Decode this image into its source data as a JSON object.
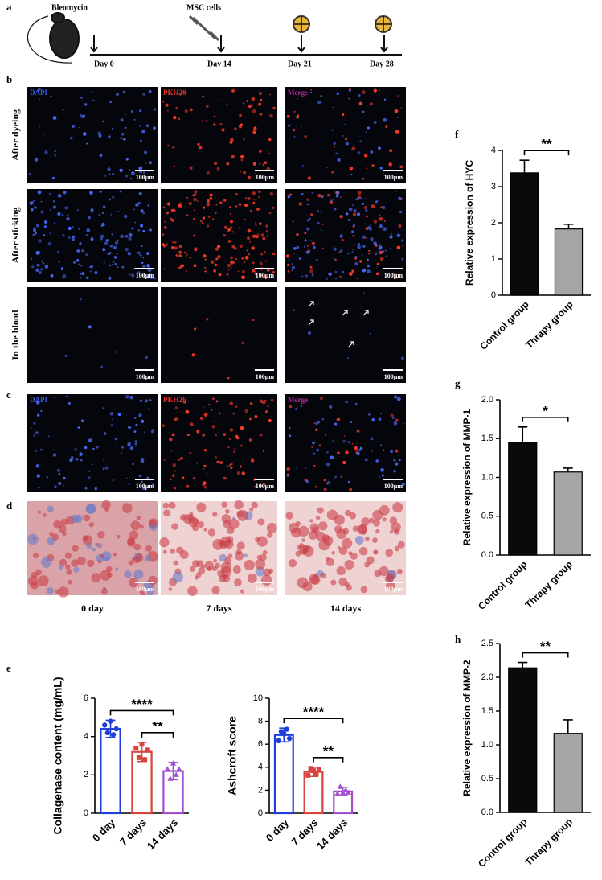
{
  "panel_labels": [
    "a",
    "b",
    "c",
    "d",
    "e",
    "f",
    "g",
    "h"
  ],
  "timeline": {
    "agent": "Bleomycin",
    "treatment": "MSC cells",
    "days": [
      "Day 0",
      "Day 14",
      "Day 21",
      "Day 28"
    ]
  },
  "fluorescence": {
    "channels": [
      "DAPI",
      "PKH26",
      "Merge"
    ],
    "conditions": [
      "After dyeing",
      "After sticking",
      "In the blood"
    ],
    "scale_bar": "100μm"
  },
  "histology": {
    "timepoints": [
      "0 day",
      "7 days",
      "14 days"
    ],
    "scale_bar": "100μm"
  },
  "chart_data": [
    {
      "type": "bar",
      "style": "outline",
      "y_label": "Collagenase content (mg/mL)",
      "categories": [
        "0 day",
        "7 days",
        "14 days"
      ],
      "values": [
        4.4,
        3.2,
        2.2
      ],
      "errors": [
        0.45,
        0.5,
        0.45
      ],
      "points": [
        [
          4.6,
          4.2,
          4.8,
          4.1,
          4.4
        ],
        [
          3.4,
          2.9,
          3.6,
          2.8,
          3.3
        ],
        [
          2.3,
          1.8,
          2.6,
          2.0,
          2.3
        ]
      ],
      "markers": [
        "circle",
        "square",
        "triangle"
      ],
      "colors": [
        "#1f3fd8",
        "#d8443e",
        "#a24fd0"
      ],
      "ylim": [
        0,
        6
      ],
      "yticks": [
        0,
        2,
        4,
        6
      ],
      "comparisons": [
        {
          "label": "****",
          "between": [
            0,
            2
          ]
        },
        {
          "label": "**",
          "between": [
            1,
            2
          ]
        }
      ]
    },
    {
      "type": "bar",
      "style": "outline",
      "y_label": "Ashcroft score",
      "categories": [
        "0 day",
        "7 days",
        "14 days"
      ],
      "values": [
        6.8,
        3.6,
        1.9
      ],
      "errors": [
        0.6,
        0.4,
        0.35
      ],
      "points": [
        [
          6.3,
          7.1,
          6.9,
          7.3,
          6.5
        ],
        [
          3.3,
          3.9,
          3.7,
          3.4,
          3.8
        ],
        [
          1.7,
          2.3,
          1.8,
          2.0,
          1.8
        ]
      ],
      "markers": [
        "circle",
        "square",
        "triangle"
      ],
      "colors": [
        "#1f3fd8",
        "#d8443e",
        "#a24fd0"
      ],
      "ylim": [
        0,
        10
      ],
      "yticks": [
        0,
        2,
        4,
        6,
        8,
        10
      ],
      "comparisons": [
        {
          "label": "****",
          "between": [
            0,
            2
          ]
        },
        {
          "label": "**",
          "between": [
            1,
            2
          ]
        }
      ]
    },
    {
      "type": "bar",
      "style": "solid",
      "y_label": "Relative expression of HYC",
      "categories": [
        "Control group",
        "Thrapy group"
      ],
      "values": [
        3.38,
        1.83
      ],
      "errors": [
        0.35,
        0.13
      ],
      "colors": [
        "#0a0a0a",
        "#a5a5a8"
      ],
      "ylim": [
        0,
        4
      ],
      "yticks": [
        0,
        1,
        2,
        3,
        4
      ],
      "comparisons": [
        {
          "label": "**",
          "between": [
            0,
            1
          ]
        }
      ]
    },
    {
      "type": "bar",
      "style": "solid",
      "y_label": "Relative expression of MMP-1",
      "categories": [
        "Control group",
        "Thrapy  group"
      ],
      "values": [
        1.45,
        1.07
      ],
      "errors": [
        0.2,
        0.05
      ],
      "colors": [
        "#0a0a0a",
        "#a5a5a8"
      ],
      "ylim": [
        0,
        2
      ],
      "yticks": [
        {
          "value": 0,
          "label": "0.0"
        },
        {
          "value": 0.5,
          "label": "0.5"
        },
        {
          "value": 1,
          "label": "1.0"
        },
        {
          "value": 1.5,
          "label": "1.5"
        },
        {
          "value": 2,
          "label": "2.0"
        }
      ],
      "comparisons": [
        {
          "label": "*",
          "between": [
            0,
            1
          ]
        }
      ]
    },
    {
      "type": "bar",
      "style": "solid",
      "y_label": "Relative expression of MMP-2",
      "categories": [
        "Control group",
        "Thrapy  group"
      ],
      "values": [
        2.14,
        1.17
      ],
      "errors": [
        0.08,
        0.2
      ],
      "colors": [
        "#0a0a0a",
        "#a5a5a8"
      ],
      "ylim": [
        0,
        2.5
      ],
      "yticks": [
        {
          "value": 0,
          "label": "0.0"
        },
        {
          "value": 0.5,
          "label": "0.5"
        },
        {
          "value": 1,
          "label": "1.0"
        },
        {
          "value": 1.5,
          "label": "1.5"
        },
        {
          "value": 2,
          "label": "2.0"
        },
        {
          "value": 2.5,
          "label": "2.5"
        }
      ],
      "comparisons": [
        {
          "label": "**",
          "between": [
            0,
            1
          ]
        }
      ]
    }
  ]
}
